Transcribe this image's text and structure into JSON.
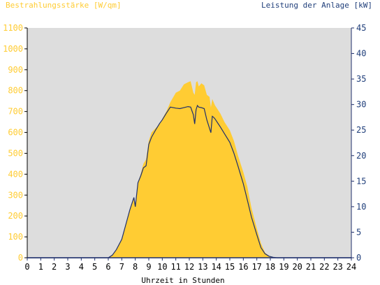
{
  "colors": {
    "irradiance": "#FFCC33",
    "power": "#1F2F6B",
    "plot_bg": "#DDDDDD",
    "left_axis_text": "#FFCC33",
    "right_axis_text": "#1F3E7A"
  },
  "chart_data": {
    "type": "area",
    "title": "",
    "left_axis_title": "Bestrahlungsstärke [W/qm]",
    "right_axis_title": "Leistung der Anlage [kW]",
    "xlabel": "Uhrzeit in Stunden",
    "xlim": [
      0,
      24
    ],
    "y_left_lim": [
      0,
      1100
    ],
    "y_right_lim": [
      0,
      45
    ],
    "x_tick_labels": [
      "0",
      "1",
      "2",
      "3",
      "4",
      "5",
      "6",
      "7",
      "8",
      "9",
      "10",
      "11",
      "12",
      "13",
      "14",
      "15",
      "16",
      "17",
      "18",
      "19",
      "20",
      "21",
      "22",
      "23",
      "24"
    ],
    "y_left_tick_labels": [
      "0",
      "100",
      "200",
      "300",
      "400",
      "500",
      "600",
      "700",
      "800",
      "900",
      "1000",
      "1100"
    ],
    "y_right_tick_labels": [
      "0",
      "5",
      "10",
      "15",
      "20",
      "25",
      "30",
      "35",
      "40",
      "45"
    ],
    "grid": false,
    "series": [
      {
        "name": "Bestrahlungsstärke [W/qm]",
        "axis": "left",
        "type": "area",
        "x": [
          0,
          6.0,
          6.3,
          6.6,
          7.0,
          7.3,
          7.6,
          7.9,
          8.0,
          8.2,
          8.4,
          8.6,
          8.8,
          9.0,
          9.2,
          9.5,
          9.8,
          10.0,
          10.3,
          10.6,
          11.0,
          11.3,
          11.6,
          11.9,
          12.1,
          12.3,
          12.4,
          12.5,
          12.6,
          12.7,
          12.9,
          13.1,
          13.3,
          13.5,
          13.6,
          13.7,
          13.8,
          13.9,
          14.0,
          14.1,
          14.3,
          14.6,
          15.0,
          15.3,
          15.6,
          16.0,
          16.3,
          16.6,
          17.0,
          17.3,
          17.6,
          17.9,
          18.2,
          18.5,
          24
        ],
        "y": [
          0,
          0,
          15,
          40,
          90,
          160,
          230,
          290,
          245,
          360,
          400,
          450,
          470,
          560,
          600,
          620,
          640,
          665,
          700,
          745,
          790,
          800,
          830,
          840,
          845,
          790,
          780,
          840,
          845,
          820,
          835,
          825,
          780,
          770,
          720,
          760,
          745,
          730,
          720,
          710,
          690,
          650,
          610,
          560,
          490,
          410,
          340,
          240,
          140,
          70,
          25,
          8,
          2,
          0,
          0
        ]
      },
      {
        "name": "Leistung der Anlage [kW]",
        "axis": "right",
        "type": "line",
        "x": [
          0,
          6.0,
          6.3,
          6.6,
          7.0,
          7.3,
          7.6,
          7.9,
          8.0,
          8.2,
          8.4,
          8.6,
          8.8,
          9.0,
          9.2,
          9.5,
          9.8,
          10.0,
          10.3,
          10.6,
          11.0,
          11.3,
          11.6,
          11.9,
          12.1,
          12.3,
          12.4,
          12.5,
          12.6,
          12.7,
          12.9,
          13.1,
          13.3,
          13.5,
          13.6,
          13.7,
          13.8,
          13.9,
          14.0,
          14.1,
          14.3,
          14.6,
          15.0,
          15.3,
          15.6,
          16.0,
          16.3,
          16.6,
          17.0,
          17.3,
          17.6,
          17.9,
          18.2,
          18.5,
          24
        ],
        "y": [
          0,
          0,
          0.5,
          1.6,
          3.6,
          6.5,
          9.4,
          11.8,
          10.0,
          14.7,
          16.0,
          17.6,
          18.0,
          22.2,
          23.6,
          25.0,
          26.3,
          27.0,
          28.3,
          29.5,
          29.3,
          29.2,
          29.4,
          29.6,
          29.5,
          28.0,
          26.2,
          29.0,
          29.8,
          29.5,
          29.4,
          29.2,
          27.0,
          25.3,
          24.5,
          27.7,
          27.5,
          27.2,
          26.8,
          26.4,
          25.6,
          24.3,
          22.6,
          20.5,
          18.0,
          14.5,
          11.3,
          8.0,
          4.5,
          2.0,
          0.8,
          0.3,
          0.1,
          0,
          0
        ]
      }
    ]
  }
}
